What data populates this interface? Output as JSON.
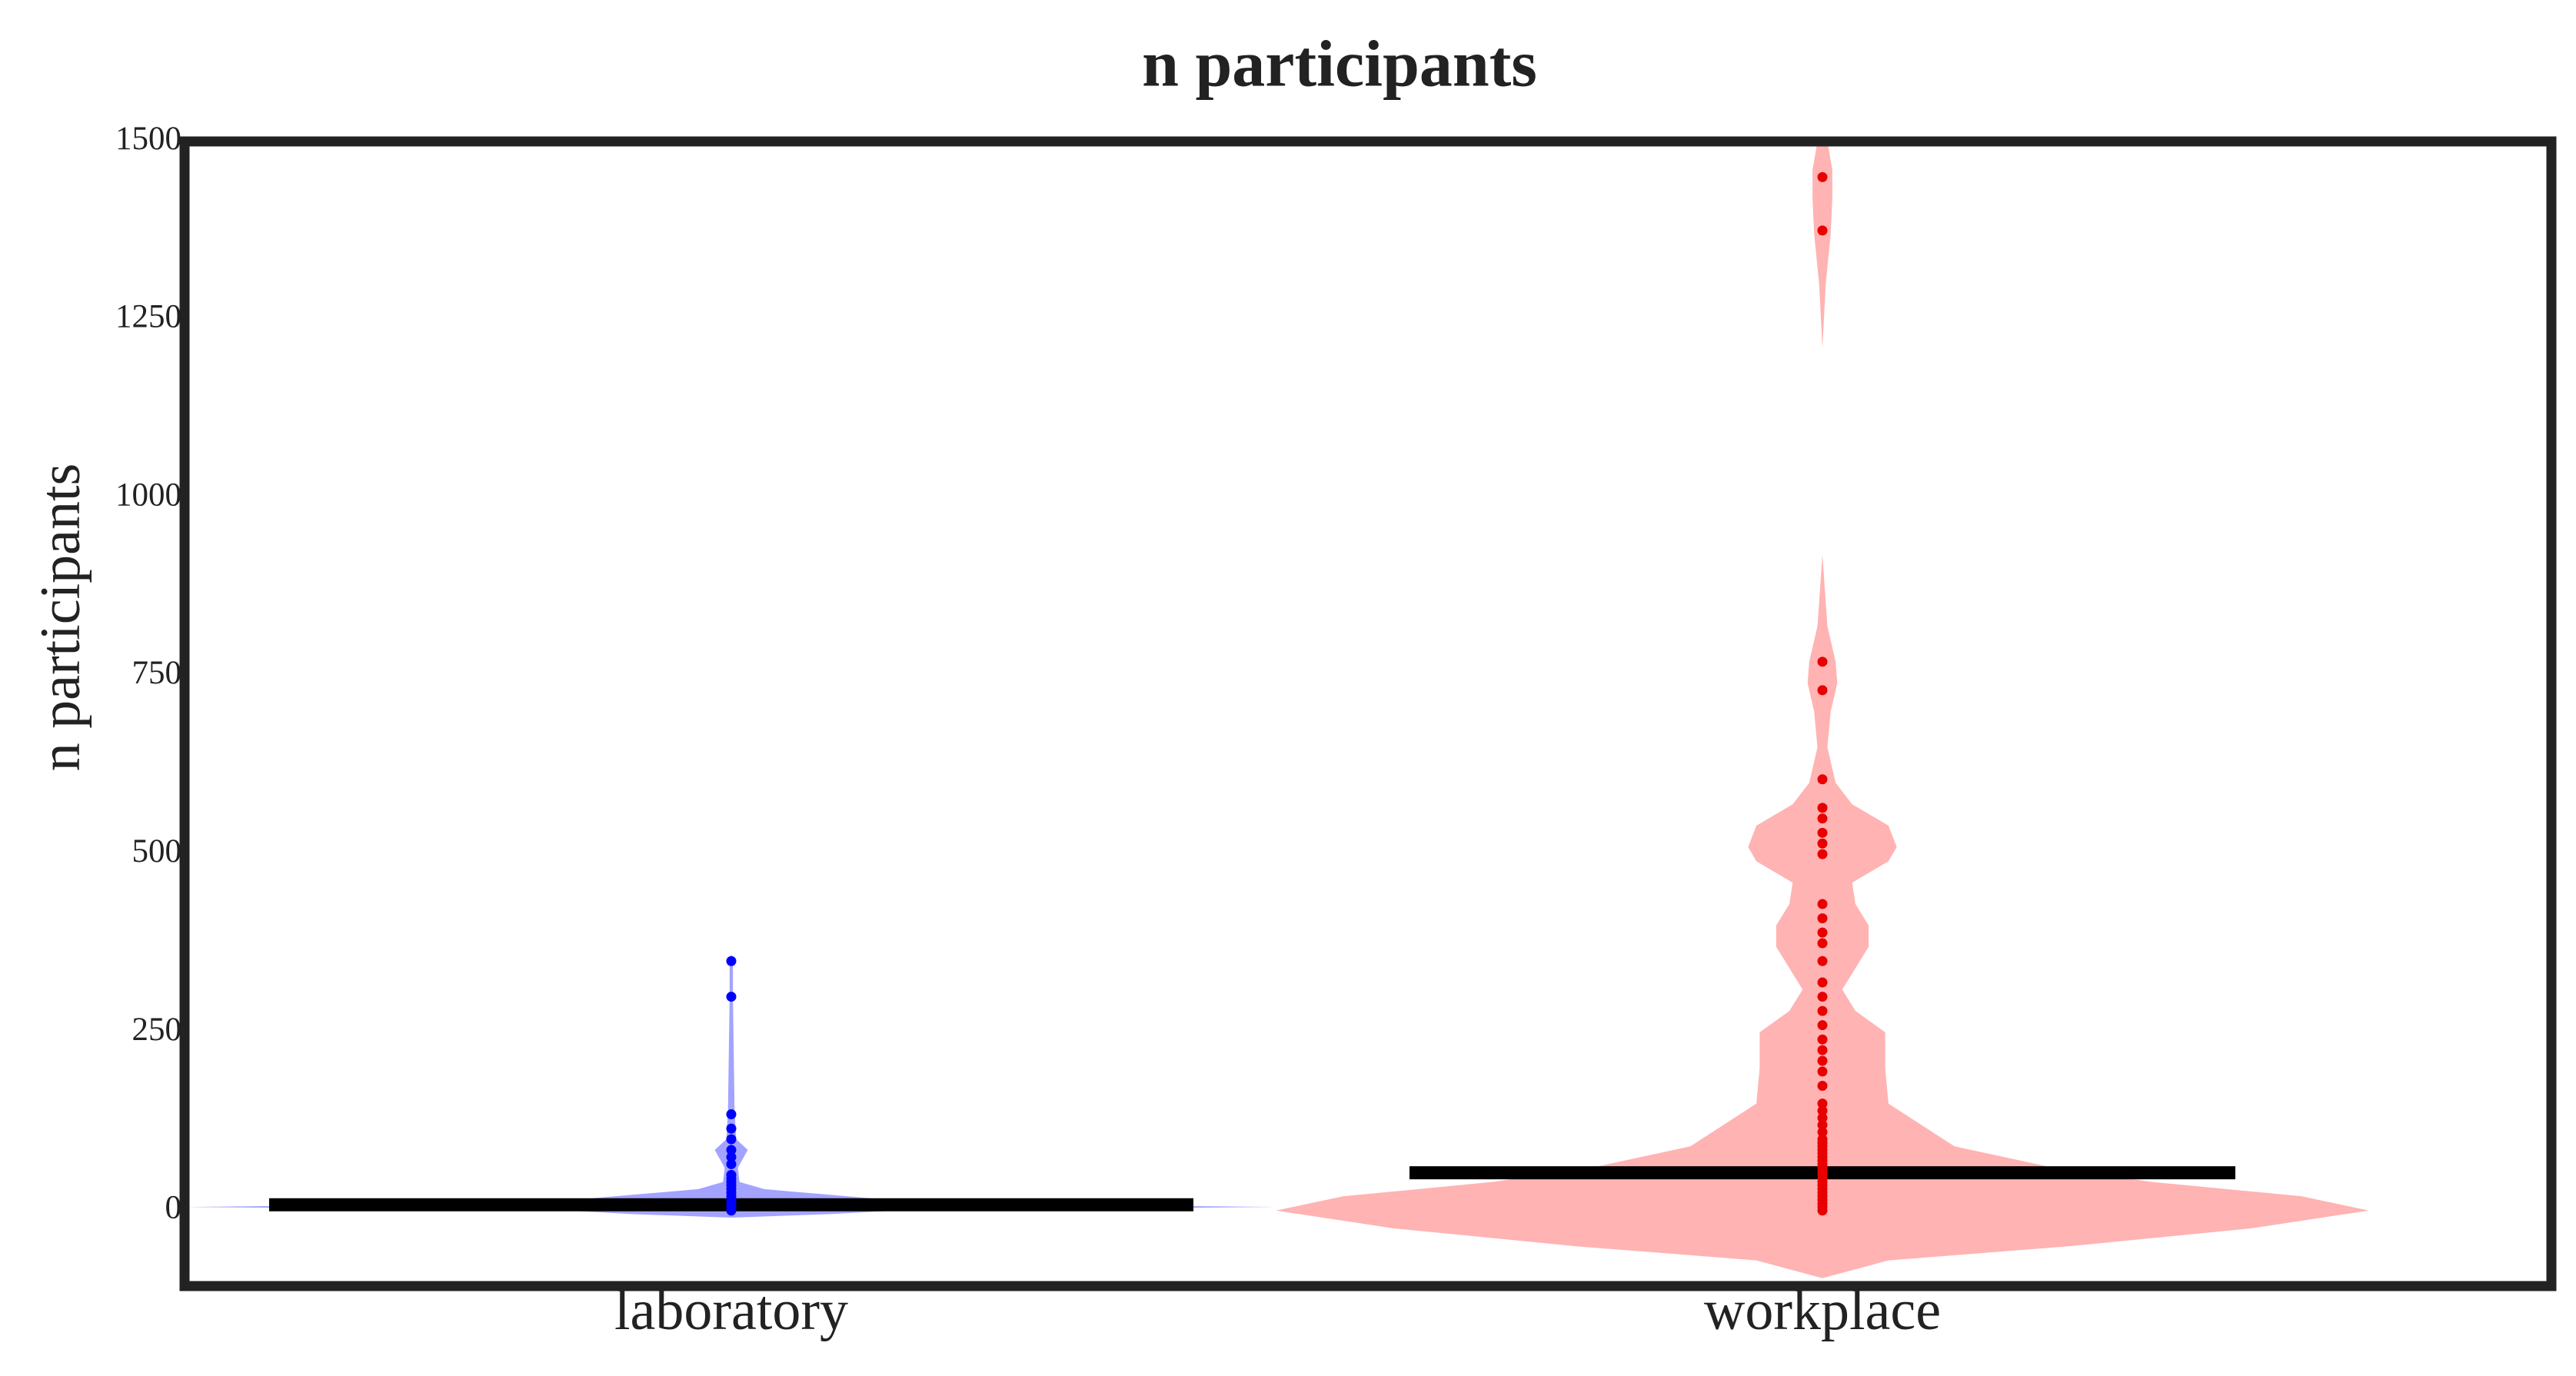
{
  "chart_data": {
    "type": "violin",
    "title": "n participants",
    "y_label": "n participants",
    "categories": [
      "laboratory",
      "workplace"
    ],
    "point_colors": [
      "#0000ff",
      "#e80000"
    ],
    "fill_colors": [
      "#a3a3ff",
      "#ffb3b3"
    ],
    "medians": [
      8,
      53
    ],
    "values": [
      [
        350,
        300,
        135,
        115,
        100,
        85,
        75,
        65,
        50,
        45,
        40,
        35,
        30,
        25,
        20,
        15,
        10,
        5,
        0
      ],
      [
        1450,
        1375,
        770,
        730,
        605,
        565,
        550,
        530,
        515,
        500,
        430,
        410,
        390,
        375,
        350,
        320,
        300,
        280,
        260,
        240,
        225,
        210,
        195,
        175,
        150,
        140,
        130,
        120,
        110,
        100,
        95,
        90,
        85,
        80,
        75,
        70,
        65,
        60,
        55,
        50,
        45,
        40,
        35,
        30,
        25,
        20,
        15,
        10,
        5,
        0
      ]
    ],
    "violin_y": [
      [
        -10,
        -5,
        0,
        5,
        10,
        20,
        30,
        40,
        60,
        85,
        100,
        140,
        300,
        350,
        360
      ],
      [
        -95,
        -70,
        -50,
        -25,
        0,
        20,
        40,
        60,
        90,
        120,
        150,
        200,
        250,
        280,
        310,
        340,
        370,
        400,
        430,
        460,
        490,
        510,
        540,
        570,
        600,
        650,
        700,
        740,
        770,
        820,
        920,
        null,
        1210,
        1300,
        1370,
        1420,
        1460,
        1500
      ]
    ],
    "violin_width": [
      [
        0,
        60,
        100,
        330,
        120,
        70,
        20,
        5,
        4,
        10,
        3,
        2,
        1,
        1,
        0
      ],
      [
        0,
        40,
        150,
        260,
        331,
        290,
        200,
        140,
        80,
        60,
        40,
        38,
        38,
        20,
        12,
        20,
        28,
        28,
        20,
        18,
        40,
        45,
        40,
        18,
        8,
        3,
        5,
        9,
        8,
        3,
        0,
        null,
        0,
        2,
        5,
        6,
        6,
        3
      ]
    ],
    "ylim": [
      -106,
      1500
    ],
    "yticks": [
      0,
      250,
      500,
      750,
      1000,
      1250,
      1500
    ]
  }
}
